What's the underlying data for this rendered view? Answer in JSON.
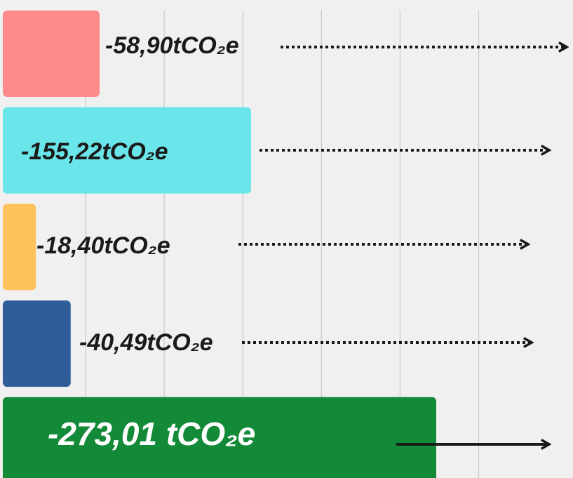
{
  "chart_data": {
    "type": "bar",
    "orientation": "horizontal",
    "values": [
      -58.9,
      -155.22,
      -18.4,
      -40.49,
      -273.01
    ],
    "value_labels": [
      "-58,90tCO₂e",
      "-155,22tCO₂e",
      "-18,40tCO₂e",
      "-40,49tCO₂e",
      "-273,01 tCO₂e"
    ],
    "colors": [
      "#ff8a8a",
      "#6ae6ea",
      "#ffc15c",
      "#2e5d99",
      "#128a37"
    ],
    "xlim": [
      0,
      -360
    ],
    "xticks": [
      -50,
      -100,
      -150,
      -200,
      -250,
      -300
    ],
    "grid": true
  }
}
